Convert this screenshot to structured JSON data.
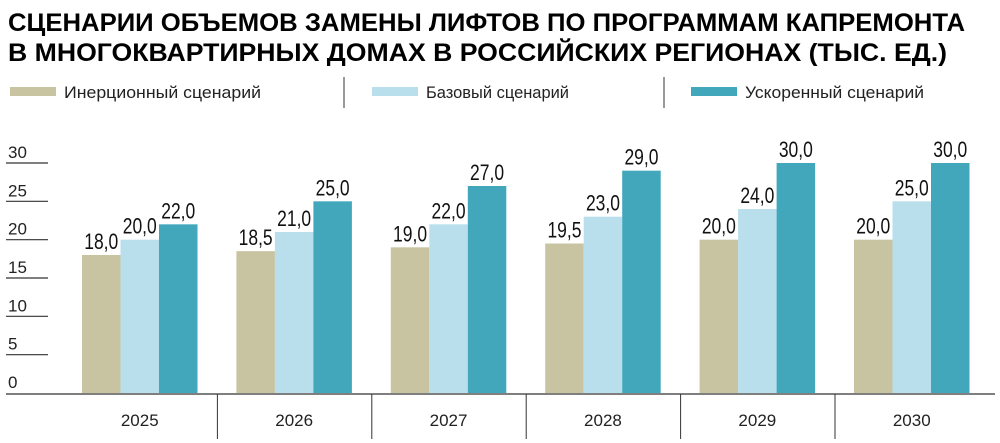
{
  "chart_data": {
    "type": "bar",
    "title": [
      "СЦЕНАРИИ ОБЪЕМОВ ЗАМЕНЫ ЛИФТОВ ПО ПРОГРАММАМ КАПРЕМОНТА",
      "В МНОГОКВАРТИРНЫХ ДОМАХ В РОССИЙСКИХ РЕГИОНАХ (ТЫС. ЕД.)"
    ],
    "categories": [
      "2025",
      "2026",
      "2027",
      "2028",
      "2029",
      "2030"
    ],
    "series": [
      {
        "name": "Инерционный сценарий",
        "color": "#c8c3a0",
        "values": [
          18.0,
          18.5,
          19.0,
          19.5,
          20.0,
          20.0
        ],
        "labels": [
          "18,0",
          "18,5",
          "19,0",
          "19,5",
          "20,0",
          "20,0"
        ]
      },
      {
        "name": "Базовый сценарий",
        "color": "#b9dfec",
        "values": [
          20.0,
          21.0,
          22.0,
          23.0,
          24.0,
          25.0
        ],
        "labels": [
          "20,0",
          "21,0",
          "22,0",
          "23,0",
          "24,0",
          "25,0"
        ]
      },
      {
        "name": "Ускоренный сценарий",
        "color": "#42a7bb",
        "values": [
          22.0,
          25.0,
          27.0,
          29.0,
          30.0,
          30.0
        ],
        "labels": [
          "22,0",
          "25,0",
          "27,0",
          "29,0",
          "30,0",
          "30,0"
        ]
      }
    ],
    "yticks": [
      "0",
      "5",
      "10",
      "15",
      "20",
      "25",
      "30"
    ],
    "ylim": [
      0,
      30
    ],
    "xlabel": "",
    "ylabel": "",
    "legend": "top",
    "grid": false
  }
}
